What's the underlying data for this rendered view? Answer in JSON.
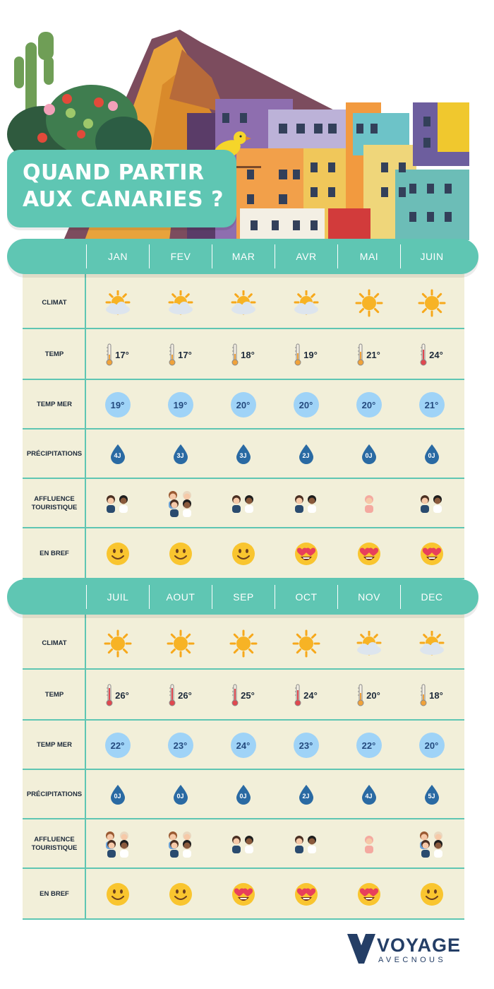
{
  "header": {
    "title_line1": "QUAND PARTIR",
    "title_line2": "AUX CANARIES ?"
  },
  "row_labels": {
    "climat": "CLIMAT",
    "temp": "TEMP",
    "temp_mer": "TEMP MER",
    "precipitations": "PRÉCIPITATIONS",
    "affluence": "AFFLUENCE\nTOURISTIQUE",
    "en_bref": "EN BREF"
  },
  "sections": [
    {
      "months": [
        "JAN",
        "FEV",
        "MAR",
        "AVR",
        "MAI",
        "JUIN"
      ],
      "climat": [
        "sun-cloud-icon",
        "sun-cloud-icon",
        "sun-cloud-icon",
        "sun-cloud-icon",
        "sun-icon",
        "sun-icon"
      ],
      "temp": [
        "17°",
        "17°",
        "18°",
        "19°",
        "21°",
        "24°"
      ],
      "temp_level": [
        0.35,
        0.35,
        0.4,
        0.45,
        0.55,
        0.7
      ],
      "temp_mer": [
        "19°",
        "19°",
        "20°",
        "20°",
        "20°",
        "21°"
      ],
      "precipitations": [
        "4J",
        "3J",
        "3J",
        "2J",
        "0J",
        "0J"
      ],
      "affluence": [
        "two-people-icon",
        "four-people-icon",
        "two-people-icon",
        "two-people-icon",
        "one-person-icon",
        "two-people-icon"
      ],
      "en_bref": [
        "smile-emoji-icon",
        "smile-emoji-icon",
        "smile-emoji-icon",
        "heart-eyes-emoji-icon",
        "heart-eyes-emoji-icon",
        "heart-eyes-emoji-icon"
      ]
    },
    {
      "months": [
        "JUIL",
        "AOUT",
        "SEP",
        "OCT",
        "NOV",
        "DEC"
      ],
      "climat": [
        "sun-icon",
        "sun-icon",
        "sun-icon",
        "sun-icon",
        "sun-cloud-icon",
        "sun-cloud-icon"
      ],
      "temp": [
        "26°",
        "26°",
        "25°",
        "24°",
        "20°",
        "18°"
      ],
      "temp_level": [
        0.8,
        0.8,
        0.75,
        0.7,
        0.5,
        0.4
      ],
      "temp_mer": [
        "22°",
        "23°",
        "24°",
        "23°",
        "22°",
        "20°"
      ],
      "precipitations": [
        "0J",
        "0J",
        "0J",
        "2J",
        "4J",
        "5J"
      ],
      "affluence": [
        "four-people-icon",
        "four-people-icon",
        "two-people-icon",
        "two-people-icon",
        "one-person-icon",
        "four-people-icon"
      ],
      "en_bref": [
        "smile-emoji-icon",
        "smile-emoji-icon",
        "heart-eyes-emoji-icon",
        "heart-eyes-emoji-icon",
        "heart-eyes-emoji-icon",
        "smile-emoji-icon"
      ]
    }
  ],
  "logo": {
    "name": "VOYAGE",
    "tagline": "AVECNOUS"
  },
  "colors": {
    "teal": "#5fc6b3",
    "table_bg": "#f2efd9",
    "sea_circle": "#9fd3f7",
    "drop": "#2a6aa3",
    "text_dark": "#1d2a3a"
  }
}
